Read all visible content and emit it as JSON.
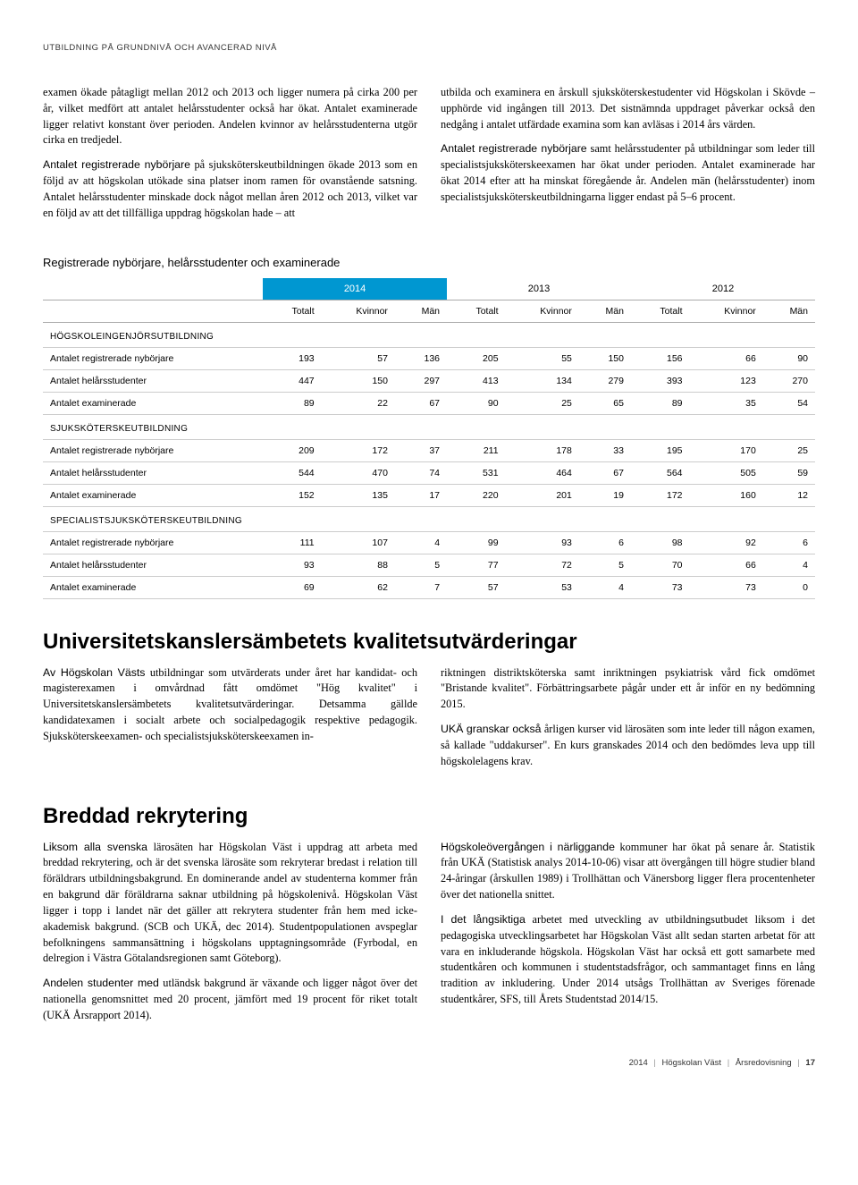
{
  "header": "UTBILDNING PÅ GRUNDNIVÅ OCH AVANCERAD NIVÅ",
  "intro": {
    "left": {
      "p1_lead": "",
      "p1": "examen ökade påtagligt mellan 2012 och 2013 och ligger numera på cirka 200 per år, vilket medfört att antalet helårsstudenter också har ökat. Antalet examinerade ligger relativt konstant över perioden. Andelen kvinnor av helårsstudenterna utgör cirka en tredjedel.",
      "p2_lead": "Antalet registrerade nybörjare",
      "p2": " på sjuksköterskeutbildningen ökade 2013 som en följd av att högskolan utökade sina platser inom ramen för ovanstående satsning. Antalet helårsstudenter minskade dock något mellan åren 2012 och 2013, vilket var en följd av att det tillfälliga uppdrag högskolan hade – att"
    },
    "right": {
      "p1": "utbilda och examinera en årskull sjuksköterskestudenter vid Högskolan i Skövde – upphörde vid ingången till 2013. Det sistnämnda uppdraget påverkar också den nedgång i antalet utfärdade examina som kan avläsas i 2014 års värden.",
      "p2_lead": "Antalet registrerade nybörjare",
      "p2": " samt helårsstudenter på utbildningar som leder till specialistsjuksköterskeexamen har ökat under perioden. Antalet examinerade har ökat 2014 efter att ha minskat föregående år. Andelen män (helårsstudenter) inom specialistsjuksköterskeutbildningarna ligger endast på 5–6 procent."
    }
  },
  "table": {
    "caption": "Registrerade nybörjare, helårsstudenter och examinerade",
    "year_heads": [
      "2014",
      "2013",
      "2012"
    ],
    "col_heads": [
      "Totalt",
      "Kvinnor",
      "Män",
      "Totalt",
      "Kvinnor",
      "Män",
      "Totalt",
      "Kvinnor",
      "Män"
    ],
    "sections": [
      {
        "title": "HÖGSKOLEINGENJÖRSUTBILDNING",
        "rows": [
          {
            "label": "Antalet registrerade nybörjare",
            "cells": [
              193,
              57,
              136,
              205,
              55,
              150,
              156,
              66,
              90
            ]
          },
          {
            "label": "Antalet helårsstudenter",
            "cells": [
              447,
              150,
              297,
              413,
              134,
              279,
              393,
              123,
              270
            ]
          },
          {
            "label": "Antalet examinerade",
            "cells": [
              89,
              22,
              67,
              90,
              25,
              65,
              89,
              35,
              54
            ]
          }
        ]
      },
      {
        "title": "SJUKSKÖTERSKEUTBILDNING",
        "rows": [
          {
            "label": "Antalet registrerade nybörjare",
            "cells": [
              209,
              172,
              37,
              211,
              178,
              33,
              195,
              170,
              25
            ]
          },
          {
            "label": "Antalet helårsstudenter",
            "cells": [
              544,
              470,
              74,
              531,
              464,
              67,
              564,
              505,
              59
            ]
          },
          {
            "label": "Antalet examinerade",
            "cells": [
              152,
              135,
              17,
              220,
              201,
              19,
              172,
              160,
              12
            ]
          }
        ]
      },
      {
        "title": "SPECIALISTSJUKSKÖTERSKEUTBILDNING",
        "rows": [
          {
            "label": "Antalet registrerade nybörjare",
            "cells": [
              111,
              107,
              4,
              99,
              93,
              6,
              98,
              92,
              6
            ]
          },
          {
            "label": "Antalet helårsstudenter",
            "cells": [
              93,
              88,
              5,
              77,
              72,
              5,
              70,
              66,
              4
            ]
          },
          {
            "label": "Antalet examinerade",
            "cells": [
              69,
              62,
              7,
              57,
              53,
              4,
              73,
              73,
              0
            ]
          }
        ]
      }
    ]
  },
  "sections": [
    {
      "title": "Universitetskanslersämbetets kvalitetsutvärderingar",
      "left": [
        {
          "lead": "Av Högskolan Västs",
          "body": " utbildningar som utvärderats under året har kandidat- och magisterexamen i omvårdnad fått omdömet \"Hög kvalitet\" i Universitetskanslersämbetets kvalitetsutvärderingar. Detsamma gällde kandidatexamen i socialt arbete och socialpedagogik respektive pedagogik. Sjuksköterskeexamen- och specialistsjuksköterskeexamen in-"
        }
      ],
      "right": [
        {
          "lead": "",
          "body": "riktningen distriktsköterska samt inriktningen psykiatrisk vård fick omdömet \"Bristande kvalitet\". Förbättringsarbete pågår under ett år inför en ny bedömning 2015."
        },
        {
          "lead": "UKÄ granskar också",
          "body": " årligen kurser vid lärosäten som inte leder till någon examen, så kallade \"uddakurser\". En kurs granskades 2014 och den bedömdes leva upp till högskolelagens krav."
        }
      ]
    },
    {
      "title": "Breddad rekrytering",
      "left": [
        {
          "lead": "Liksom alla svenska",
          "body": " lärosäten har Högskolan Väst i uppdrag att arbeta med breddad rekrytering, och är det svenska lärosäte som rekryterar bredast i relation till föräldrars utbildningsbakgrund. En dominerande andel av studenterna kommer från en bakgrund där föräldrarna saknar utbildning på högskolenivå. Högskolan Väst ligger i topp i landet när det gäller att rekrytera studenter från hem med icke-akademisk bakgrund. (SCB och UKÄ, dec 2014). Studentpopulationen avspeglar befolkningens sammansättning i högskolans upptagningsområde (Fyrbodal, en delregion i Västra Götalandsregionen samt Göteborg)."
        },
        {
          "lead": "Andelen studenter med",
          "body": " utländsk bakgrund är växande och ligger något över det nationella genomsnittet med 20 procent, jämfört med 19 procent för riket totalt (UKÄ Årsrapport 2014)."
        }
      ],
      "right": [
        {
          "lead": "Högskoleövergången i närliggande",
          "body": " kommuner har ökat på senare år. Statistik från UKÄ (Statistisk analys 2014-10-06) visar att övergången till högre studier bland 24-åringar (årskullen 1989) i Trollhättan och Vänersborg ligger flera procentenheter över det nationella snittet."
        },
        {
          "lead": "I det långsiktiga",
          "body": " arbetet med utveckling av utbildningsutbudet liksom i det pedagogiska utvecklingsarbetet har Högskolan Väst allt sedan starten arbetat för att vara en inkluderande högskola. Högskolan Väst har också ett gott samarbete med studentkåren och kommunen i studentstadsfrågor, och sammantaget finns en lång tradition av inkludering. Under 2014 utsågs Trollhättan av Sveriges förenade studentkårer, SFS, till Årets Studentstad 2014/15."
        }
      ]
    }
  ],
  "footer": {
    "year": "2014",
    "org": "Högskolan Väst",
    "doc": "Årsredovisning",
    "page": "17"
  }
}
